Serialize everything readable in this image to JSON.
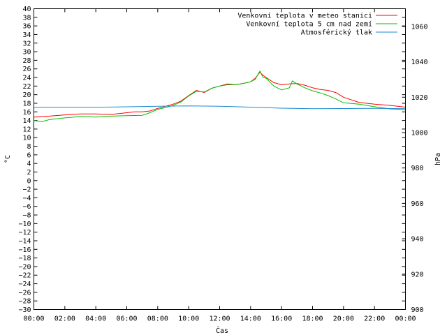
{
  "chart_data": {
    "type": "line",
    "xlabel": "Čas",
    "ylabel_left": "°C",
    "ylabel_right": "hPa",
    "x_ticks": [
      "00:00",
      "02:00",
      "04:00",
      "06:00",
      "08:00",
      "10:00",
      "12:00",
      "14:00",
      "16:00",
      "18:00",
      "20:00",
      "22:00",
      "00:00"
    ],
    "ylim_left": [
      -30,
      40
    ],
    "ylim_right": [
      900,
      1070
    ],
    "y_ticks_left": [
      40,
      38,
      36,
      34,
      32,
      30,
      28,
      26,
      24,
      22,
      20,
      18,
      16,
      14,
      12,
      10,
      8,
      6,
      4,
      2,
      0,
      -2,
      -4,
      -6,
      -8,
      -10,
      -12,
      -14,
      -16,
      -18,
      -20,
      -22,
      -24,
      -26,
      -28,
      -30
    ],
    "y_ticks_right": [
      1060,
      1040,
      1020,
      1000,
      980,
      960,
      940,
      920,
      900
    ],
    "grid": false,
    "legend_position": "top-right",
    "series": [
      {
        "name": "Venkovní teplota v meteo stanici",
        "color": "#ff0000",
        "axis": "left",
        "x": [
          0,
          1,
          2,
          3,
          4,
          5,
          6,
          6.5,
          7,
          7.5,
          8,
          8.5,
          9,
          9.5,
          10,
          10.5,
          11,
          11.5,
          12,
          12.5,
          13,
          13.5,
          14,
          14.3,
          14.6,
          14.8,
          15,
          15.5,
          16,
          16.5,
          17,
          17.5,
          18,
          18.5,
          19,
          19.5,
          20,
          21,
          22,
          23,
          24
        ],
        "values": [
          14.8,
          15.0,
          15.3,
          15.5,
          15.5,
          15.4,
          15.8,
          16.0,
          16.0,
          16.2,
          16.8,
          17.3,
          17.8,
          18.5,
          19.8,
          21.0,
          20.5,
          21.5,
          22.0,
          22.5,
          22.3,
          22.6,
          23.0,
          23.8,
          25.2,
          24.5,
          24.0,
          22.8,
          22.3,
          22.5,
          22.6,
          22.2,
          21.6,
          21.2,
          21.0,
          20.5,
          19.4,
          18.2,
          17.8,
          17.5,
          17.1
        ]
      },
      {
        "name": "Venkovní teplota 5 cm nad zemí",
        "color": "#00c000",
        "axis": "left",
        "x": [
          0,
          0.5,
          1,
          2,
          3,
          4,
          5,
          6,
          7,
          7.5,
          8,
          8.5,
          9,
          9.5,
          10,
          10.5,
          11,
          11.5,
          12,
          12.5,
          13,
          13.5,
          14,
          14.3,
          14.6,
          14.8,
          15,
          15.5,
          16,
          16.5,
          16.7,
          17,
          17.5,
          18,
          18.5,
          19,
          19.5,
          20,
          21,
          22,
          23,
          24
        ],
        "values": [
          14.0,
          13.7,
          14.2,
          14.6,
          14.9,
          14.8,
          15.0,
          15.1,
          15.2,
          15.8,
          16.6,
          17.0,
          17.5,
          18.3,
          19.7,
          20.8,
          20.6,
          21.5,
          22.0,
          22.3,
          22.3,
          22.6,
          23.0,
          23.6,
          25.5,
          24.0,
          23.8,
          22.0,
          21.1,
          21.6,
          23.2,
          22.5,
          21.6,
          20.9,
          20.4,
          19.8,
          19.0,
          18.1,
          17.8,
          17.2,
          16.7,
          16.5
        ]
      },
      {
        "name": "Atmosférický tlak",
        "color": "#1a8ad0",
        "axis": "right",
        "x": [
          0,
          2,
          4,
          6,
          8,
          10,
          12,
          14,
          16,
          18,
          20,
          22,
          24
        ],
        "values": [
          1014.3,
          1014.4,
          1014.3,
          1014.6,
          1014.9,
          1015.1,
          1014.9,
          1014.4,
          1013.8,
          1013.5,
          1013.6,
          1013.7,
          1013.5
        ]
      }
    ]
  }
}
